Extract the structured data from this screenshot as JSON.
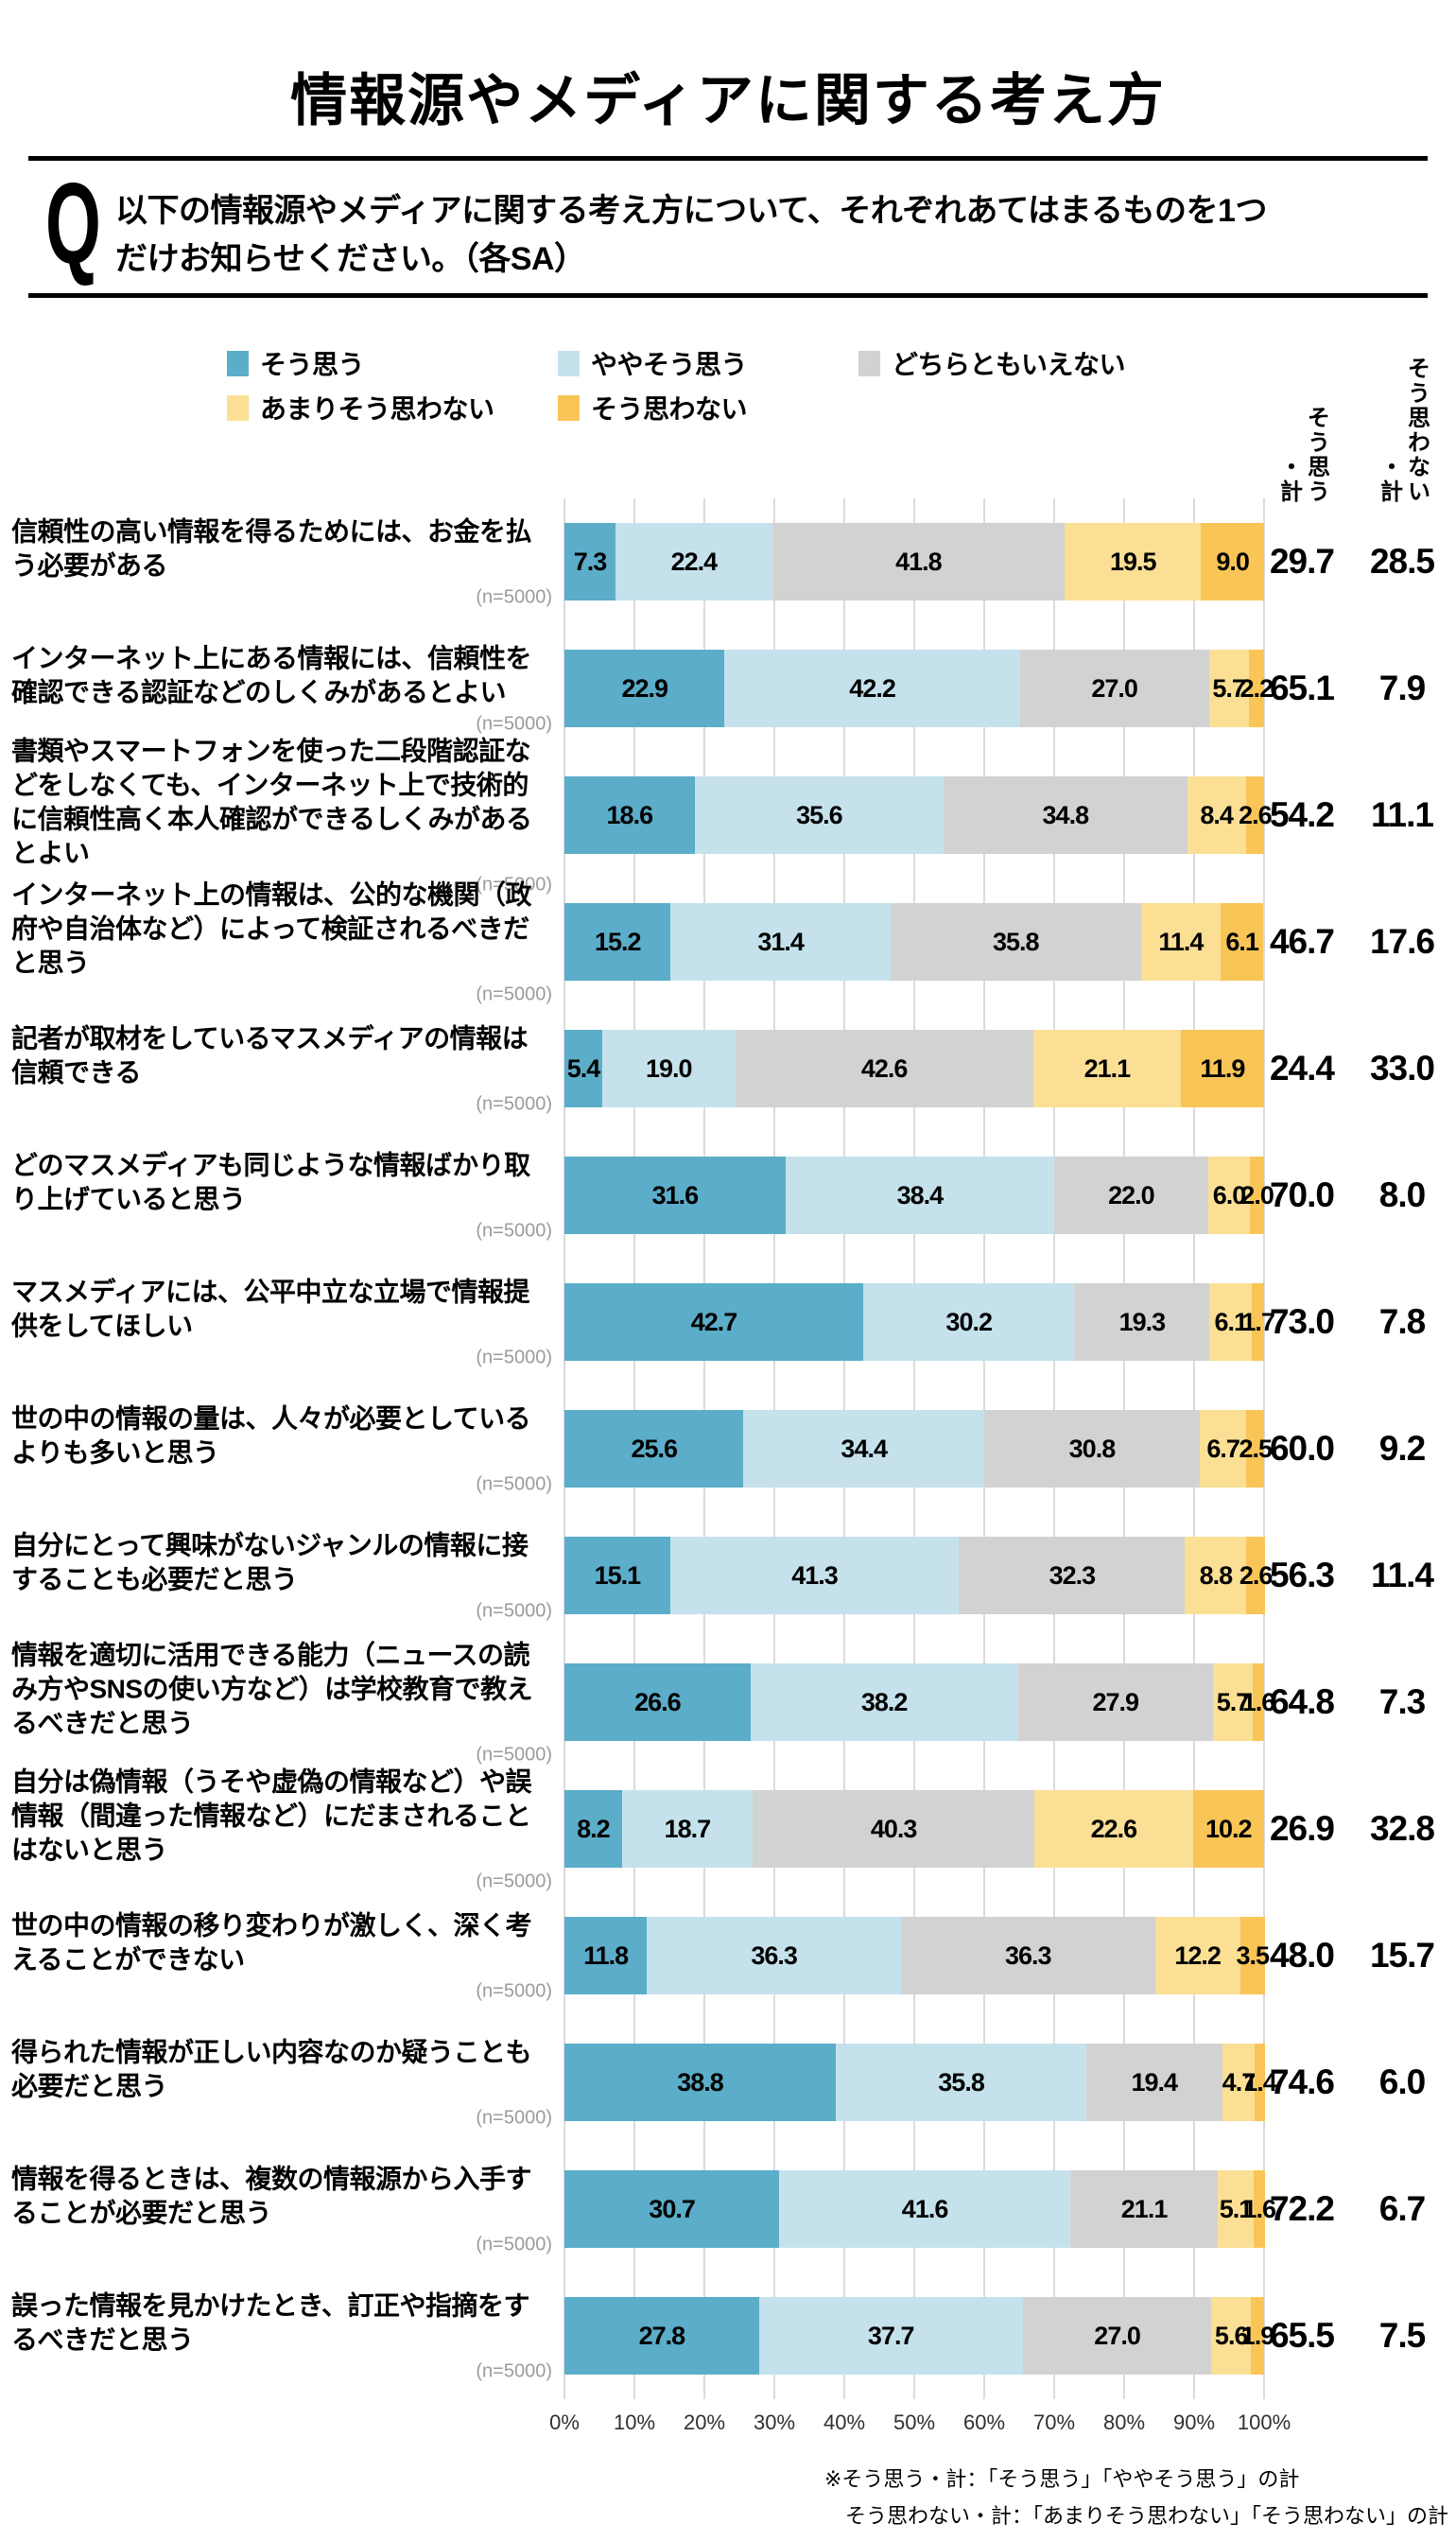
{
  "title": "情報源やメディアに関する考え方",
  "question": {
    "q_label": "Q",
    "lines": [
      "以下の情報源やメディアに関する考え方について、それぞれあてはまるものを1つ",
      "だけお知らせください。（各SA）"
    ]
  },
  "legend": [
    {
      "label": "そう思う",
      "color": "#5badc9"
    },
    {
      "label": "ややそう思う",
      "color": "#c5e2ec"
    },
    {
      "label": "どちらともいえない",
      "color": "#d2d2d2"
    },
    {
      "label": "あまりそう思わない",
      "color": "#fadf95"
    },
    {
      "label": "そう思わない",
      "color": "#f9c557"
    }
  ],
  "columns": {
    "agree_total": "そう思う・計",
    "disagree_total": "そう思わない・計"
  },
  "axis": {
    "ticks": [
      "0%",
      "10%",
      "20%",
      "30%",
      "40%",
      "50%",
      "60%",
      "70%",
      "80%",
      "90%",
      "100%"
    ]
  },
  "footnote": [
    "※そう思う・計：「そう思う」「ややそう思う」の計",
    "そう思わない・計：「あまりそう思わない」「そう思わない」の計"
  ],
  "chart_data": {
    "type": "bar",
    "stacked": true,
    "orientation": "horizontal",
    "unit": "%",
    "xlim": [
      0,
      100
    ],
    "grid": true,
    "series_names": [
      "そう思う",
      "ややそう思う",
      "どちらともいえない",
      "あまりそう思わない",
      "そう思わない"
    ],
    "rows": [
      {
        "label": "信頼性の高い情報を得るためには、お金を払う必要がある",
        "n": "(n=5000)",
        "values": [
          7.3,
          22.4,
          41.8,
          19.5,
          9.0
        ],
        "agree_total": 29.7,
        "disagree_total": 28.5
      },
      {
        "label": "インターネット上にある情報には、信頼性を確認できる認証などのしくみがあるとよい",
        "n": "(n=5000)",
        "values": [
          22.9,
          42.2,
          27.0,
          5.7,
          2.2
        ],
        "agree_total": 65.1,
        "disagree_total": 7.9
      },
      {
        "label": "書類やスマートフォンを使った二段階認証などをしなくても、インターネット上で技術的に信頼性高く本人確認ができるしくみがあるとよい",
        "n": "(n=5000)",
        "values": [
          18.6,
          35.6,
          34.8,
          8.4,
          2.6
        ],
        "agree_total": 54.2,
        "disagree_total": 11.1
      },
      {
        "label": "インターネット上の情報は、公的な機関（政府や自治体など）によって検証されるべきだと思う",
        "n": "(n=5000)",
        "values": [
          15.2,
          31.4,
          35.8,
          11.4,
          6.1
        ],
        "agree_total": 46.7,
        "disagree_total": 17.6
      },
      {
        "label": "記者が取材をしているマスメディアの情報は信頼できる",
        "n": "(n=5000)",
        "values": [
          5.4,
          19.0,
          42.6,
          21.1,
          11.9
        ],
        "agree_total": 24.4,
        "disagree_total": 33.0
      },
      {
        "label": "どのマスメディアも同じような情報ばかり取り上げていると思う",
        "n": "(n=5000)",
        "values": [
          31.6,
          38.4,
          22.0,
          6.0,
          2.0
        ],
        "agree_total": 70.0,
        "disagree_total": 8.0
      },
      {
        "label": "マスメディアには、公平中立な立場で情報提供をしてほしい",
        "n": "(n=5000)",
        "values": [
          42.7,
          30.2,
          19.3,
          6.1,
          1.7
        ],
        "agree_total": 73.0,
        "disagree_total": 7.8
      },
      {
        "label": "世の中の情報の量は、人々が必要としているよりも多いと思う",
        "n": "(n=5000)",
        "values": [
          25.6,
          34.4,
          30.8,
          6.7,
          2.5
        ],
        "agree_total": 60.0,
        "disagree_total": 9.2
      },
      {
        "label": "自分にとって興味がないジャンルの情報に接することも必要だと思う",
        "n": "(n=5000)",
        "values": [
          15.1,
          41.3,
          32.3,
          8.8,
          2.6
        ],
        "agree_total": 56.3,
        "disagree_total": 11.4
      },
      {
        "label": "情報を適切に活用できる能力（ニュースの読み方やSNSの使い方など）は学校教育で教えるべきだと思う",
        "n": "(n=5000)",
        "values": [
          26.6,
          38.2,
          27.9,
          5.7,
          1.6
        ],
        "agree_total": 64.8,
        "disagree_total": 7.3
      },
      {
        "label": "自分は偽情報（うそや虚偽の情報など）や誤情報（間違った情報など）にだまされることはないと思う",
        "n": "(n=5000)",
        "values": [
          8.2,
          18.7,
          40.3,
          22.6,
          10.2
        ],
        "agree_total": 26.9,
        "disagree_total": 32.8
      },
      {
        "label": "世の中の情報の移り変わりが激しく、深く考えることができない",
        "n": "(n=5000)",
        "values": [
          11.8,
          36.3,
          36.3,
          12.2,
          3.5
        ],
        "agree_total": 48.0,
        "disagree_total": 15.7
      },
      {
        "label": "得られた情報が正しい内容なのか疑うことも必要だと思う",
        "n": "(n=5000)",
        "values": [
          38.8,
          35.8,
          19.4,
          4.7,
          1.4
        ],
        "agree_total": 74.6,
        "disagree_total": 6.0
      },
      {
        "label": "情報を得るときは、複数の情報源から入手することが必要だと思う",
        "n": "(n=5000)",
        "values": [
          30.7,
          41.6,
          21.1,
          5.1,
          1.6
        ],
        "agree_total": 72.2,
        "disagree_total": 6.7
      },
      {
        "label": "誤った情報を見かけたとき、訂正や指摘をするべきだと思う",
        "n": "(n=5000)",
        "values": [
          27.8,
          37.7,
          27.0,
          5.6,
          1.9
        ],
        "agree_total": 65.5,
        "disagree_total": 7.5
      }
    ]
  }
}
